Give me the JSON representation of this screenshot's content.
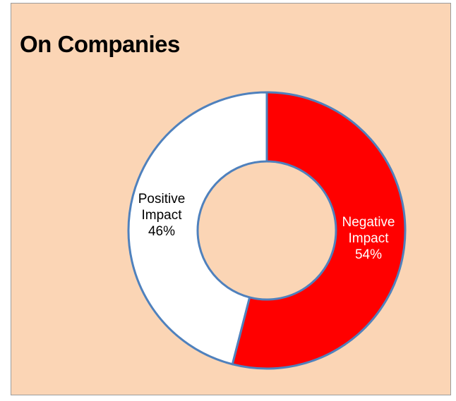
{
  "chart_data": {
    "type": "pie",
    "variant": "doughnut",
    "title": "On Companies",
    "slices": [
      {
        "label_lines": [
          "Negative",
          "Impact"
        ],
        "value": 54,
        "value_label": "54%",
        "color": "#ff0000"
      },
      {
        "label_lines": [
          "Positive",
          "Impact"
        ],
        "value": 46,
        "value_label": "46%",
        "color": "#ffffff"
      }
    ],
    "start_angle": "12 o'clock",
    "direction": "clockwise",
    "stroke_color": "#4f81bd",
    "legend": "none"
  },
  "colors": {
    "background": "#fbd5b5",
    "negative": "#ff0000",
    "positive": "#ffffff",
    "outline": "#4f81bd"
  }
}
